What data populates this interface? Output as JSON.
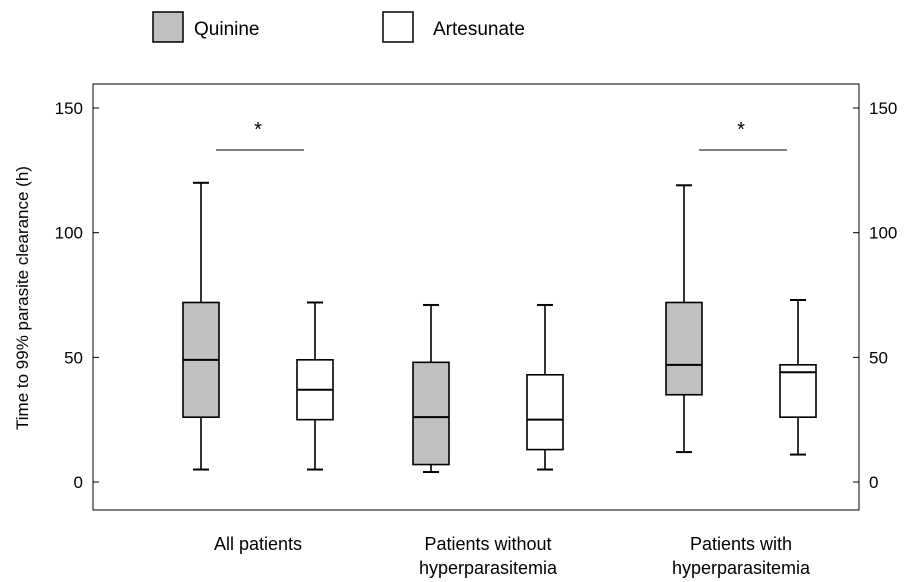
{
  "chart_data": {
    "type": "box",
    "ylabel": "Time to 99% parasite clearance (h)",
    "ylim": [
      0,
      150
    ],
    "yticks": [
      0,
      50,
      100,
      150
    ],
    "legend": {
      "placement": "top-left",
      "items": [
        {
          "name": "Quinine",
          "color": "#c0c0c0"
        },
        {
          "name": "Artesunate",
          "color": "#ffffff"
        }
      ]
    },
    "groups": [
      {
        "label_lines": [
          "All patients"
        ],
        "significance": "*",
        "boxes": [
          {
            "series": "Quinine",
            "min": 5,
            "q1": 26,
            "median": 49,
            "q3": 72,
            "max": 120
          },
          {
            "series": "Artesunate",
            "min": 5,
            "q1": 25,
            "median": 37,
            "q3": 49,
            "max": 72
          }
        ]
      },
      {
        "label_lines": [
          "Patients without",
          "hyperparasitemia"
        ],
        "significance": "",
        "boxes": [
          {
            "series": "Quinine",
            "min": 4,
            "q1": 7,
            "median": 26,
            "q3": 48,
            "max": 71
          },
          {
            "series": "Artesunate",
            "min": 5,
            "q1": 13,
            "median": 25,
            "q3": 43,
            "max": 71
          }
        ]
      },
      {
        "label_lines": [
          "Patients with",
          "hyperparasitemia"
        ],
        "significance": "*",
        "boxes": [
          {
            "series": "Quinine",
            "min": 12,
            "q1": 35,
            "median": 47,
            "q3": 72,
            "max": 119
          },
          {
            "series": "Artesunate",
            "min": 11,
            "q1": 26,
            "median": 44,
            "q3": 47,
            "max": 73
          }
        ]
      }
    ]
  }
}
